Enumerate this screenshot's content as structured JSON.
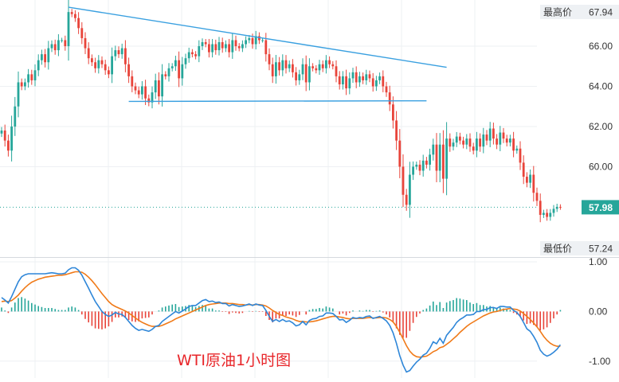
{
  "caption": "WTI原油1小时图",
  "colors": {
    "up": "#26a69a",
    "down": "#e8443a",
    "trendline": "#3aa0e0",
    "macd_line": "#2e86d8",
    "signal_line": "#f07a18",
    "hist_pos": "#26a69a",
    "hist_neg": "#e8443a",
    "grid": "#eef0f3",
    "axis_text": "#333333"
  },
  "markers": {
    "high_label": "最高价",
    "high_value": "67.94",
    "low_label": "最低价",
    "low_value": "57.24",
    "current_value": "57.98"
  },
  "chart_data": [
    {
      "type": "candlestick",
      "title": "",
      "y_ticks": [
        "66.00",
        "64.00",
        "62.00",
        "60.00"
      ],
      "ylim": [
        55.5,
        68.3
      ],
      "grid": true,
      "closes": [
        61.8,
        61.3,
        60.8,
        62.0,
        63.0,
        64.2,
        64.0,
        64.2,
        64.6,
        64.3,
        64.8,
        65.3,
        65.6,
        65.2,
        65.9,
        66.1,
        65.8,
        66.3,
        66.3,
        66.0,
        67.7,
        67.6,
        67.4,
        66.9,
        66.4,
        65.9,
        65.4,
        65.2,
        64.9,
        65.3,
        65.1,
        64.8,
        64.6,
        65.5,
        65.8,
        65.6,
        65.9,
        65.1,
        64.5,
        64.0,
        63.8,
        63.6,
        64.0,
        63.4,
        63.2,
        63.7,
        64.3,
        63.5,
        64.6,
        64.5,
        64.9,
        65.0,
        65.3,
        64.4,
        65.1,
        65.4,
        65.7,
        65.6,
        65.5,
        66.0,
        66.2,
        66.1,
        65.7,
        66.1,
        65.8,
        66.2,
        65.9,
        66.1,
        65.7,
        66.3,
        66.0,
        65.9,
        66.1,
        66.3,
        66.4,
        66.1,
        66.5,
        66.3,
        66.3,
        65.6,
        65.1,
        64.5,
        65.2,
        64.8,
        65.3,
        64.9,
        65.1,
        64.7,
        64.3,
        64.6,
        65.1,
        64.2,
        65.0,
        64.9,
        64.8,
        65.1,
        64.9,
        65.3,
        65.1,
        65.0,
        64.5,
        64.1,
        64.5,
        63.9,
        64.4,
        64.7,
        64.2,
        64.5,
        64.3,
        64.6,
        64.4,
        64.0,
        64.3,
        64.5,
        64.0,
        63.7,
        63.1,
        62.3,
        61.3,
        60.0,
        58.6,
        58.1,
        59.6,
        60.0,
        60.1,
        59.8,
        60.3,
        60.1,
        60.6,
        61.1,
        59.8,
        61.1,
        59.4,
        61.4,
        61.0,
        61.2,
        61.5,
        61.3,
        61.1,
        61.4,
        61.0,
        60.8,
        61.4,
        61.0,
        61.6,
        61.3,
        61.9,
        61.4,
        61.1,
        61.7,
        61.4,
        61.2,
        61.4,
        60.8,
        60.9,
        60.2,
        59.5,
        59.2,
        59.6,
        58.7,
        58.3,
        57.6,
        57.7,
        57.5,
        57.7,
        57.9,
        58.0,
        57.98
      ],
      "trendlines": [
        {
          "from_bar": 20,
          "from_price": 67.94,
          "to_bar": 133,
          "to_price": 64.95
        },
        {
          "from_bar": 38,
          "from_price": 63.25,
          "to_bar": 127,
          "to_price": 63.28
        }
      ]
    },
    {
      "type": "line",
      "title": "",
      "y_ticks": [
        "1.00",
        "0.00",
        "-1.00"
      ],
      "ylim": [
        -1.34,
        1.08
      ],
      "series": [
        {
          "values": [
            0.28,
            0.23,
            0.17,
            0.3,
            0.45,
            0.6,
            0.7,
            0.74,
            0.76,
            0.76,
            0.76,
            0.76,
            0.76,
            0.76,
            0.77,
            0.78,
            0.77,
            0.76,
            0.76,
            0.77,
            0.84,
            0.88,
            0.88,
            0.83,
            0.73,
            0.6,
            0.47,
            0.33,
            0.2,
            0.1,
            0.0,
            -0.06,
            -0.1,
            -0.07,
            -0.02,
            -0.05,
            -0.06,
            -0.12,
            -0.2,
            -0.28,
            -0.34,
            -0.38,
            -0.36,
            -0.38,
            -0.4,
            -0.36,
            -0.3,
            -0.28,
            -0.2,
            -0.15,
            -0.1,
            -0.05,
            0.0,
            -0.03,
            0.01,
            0.05,
            0.1,
            0.12,
            0.12,
            0.17,
            0.22,
            0.24,
            0.2,
            0.21,
            0.18,
            0.19,
            0.16,
            0.16,
            0.11,
            0.14,
            0.12,
            0.1,
            0.11,
            0.13,
            0.15,
            0.12,
            0.15,
            0.13,
            0.12,
            0.02,
            -0.1,
            -0.2,
            -0.16,
            -0.2,
            -0.16,
            -0.2,
            -0.19,
            -0.23,
            -0.29,
            -0.27,
            -0.2,
            -0.27,
            -0.18,
            -0.15,
            -0.14,
            -0.1,
            -0.09,
            -0.03,
            -0.03,
            -0.04,
            -0.1,
            -0.17,
            -0.16,
            -0.22,
            -0.18,
            -0.12,
            -0.14,
            -0.12,
            -0.13,
            -0.1,
            -0.09,
            -0.14,
            -0.12,
            -0.1,
            -0.14,
            -0.19,
            -0.28,
            -0.43,
            -0.64,
            -0.89,
            -1.08,
            -1.22,
            -1.19,
            -1.1,
            -1.02,
            -0.96,
            -0.88,
            -0.84,
            -0.74,
            -0.61,
            -0.65,
            -0.54,
            -0.64,
            -0.48,
            -0.4,
            -0.32,
            -0.22,
            -0.16,
            -0.12,
            -0.07,
            -0.07,
            -0.06,
            0.0,
            0.0,
            0.04,
            0.04,
            0.08,
            0.08,
            0.06,
            0.1,
            0.1,
            0.09,
            0.09,
            0.02,
            -0.02,
            -0.1,
            -0.22,
            -0.35,
            -0.4,
            -0.5,
            -0.62,
            -0.78,
            -0.86,
            -0.9,
            -0.87,
            -0.82,
            -0.76,
            -0.67
          ]
        },
        {
          "values": [
            0.2,
            0.21,
            0.2,
            0.22,
            0.27,
            0.33,
            0.41,
            0.48,
            0.54,
            0.59,
            0.62,
            0.65,
            0.67,
            0.69,
            0.7,
            0.71,
            0.72,
            0.73,
            0.73,
            0.74,
            0.76,
            0.78,
            0.8,
            0.8,
            0.79,
            0.75,
            0.69,
            0.62,
            0.54,
            0.45,
            0.36,
            0.28,
            0.2,
            0.14,
            0.1,
            0.07,
            0.04,
            0.01,
            -0.03,
            -0.08,
            -0.13,
            -0.18,
            -0.22,
            -0.25,
            -0.28,
            -0.3,
            -0.3,
            -0.3,
            -0.28,
            -0.25,
            -0.22,
            -0.19,
            -0.15,
            -0.12,
            -0.09,
            -0.06,
            -0.03,
            0.0,
            0.03,
            0.06,
            0.09,
            0.12,
            0.14,
            0.15,
            0.16,
            0.17,
            0.17,
            0.17,
            0.16,
            0.16,
            0.15,
            0.14,
            0.14,
            0.13,
            0.14,
            0.13,
            0.14,
            0.14,
            0.13,
            0.11,
            0.07,
            0.02,
            -0.02,
            -0.06,
            -0.08,
            -0.11,
            -0.13,
            -0.15,
            -0.18,
            -0.2,
            -0.2,
            -0.21,
            -0.21,
            -0.2,
            -0.19,
            -0.17,
            -0.15,
            -0.13,
            -0.11,
            -0.1,
            -0.1,
            -0.11,
            -0.12,
            -0.14,
            -0.15,
            -0.14,
            -0.14,
            -0.14,
            -0.14,
            -0.13,
            -0.12,
            -0.13,
            -0.13,
            -0.12,
            -0.12,
            -0.13,
            -0.16,
            -0.21,
            -0.3,
            -0.42,
            -0.55,
            -0.69,
            -0.8,
            -0.87,
            -0.91,
            -0.92,
            -0.91,
            -0.9,
            -0.86,
            -0.81,
            -0.78,
            -0.73,
            -0.71,
            -0.66,
            -0.61,
            -0.55,
            -0.49,
            -0.42,
            -0.36,
            -0.3,
            -0.25,
            -0.21,
            -0.17,
            -0.13,
            -0.09,
            -0.06,
            -0.03,
            -0.01,
            0.0,
            0.02,
            0.04,
            0.05,
            0.06,
            0.05,
            0.04,
            0.01,
            -0.04,
            -0.1,
            -0.16,
            -0.23,
            -0.31,
            -0.4,
            -0.5,
            -0.58,
            -0.64,
            -0.68,
            -0.7,
            -0.7
          ]
        }
      ]
    }
  ]
}
